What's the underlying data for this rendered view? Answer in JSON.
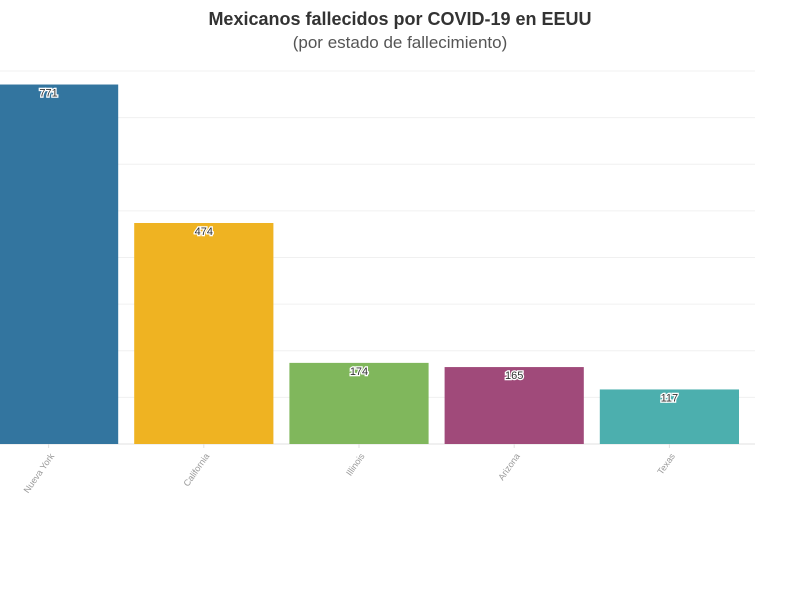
{
  "chart_data": {
    "type": "bar",
    "title": "Mexicanos fallecidos por COVID-19 en EEUU",
    "subtitle": "(por estado de fallecimiento)",
    "categories": [
      "Nueva York",
      "California",
      "Illinois",
      "Arizona",
      "Texas"
    ],
    "values": [
      771,
      474,
      174,
      165,
      117
    ],
    "colors": [
      "#33759f",
      "#efb322",
      "#80b75c",
      "#a04a7a",
      "#4cafae"
    ],
    "ylim": [
      0,
      800
    ],
    "grid": true,
    "xlabel": "",
    "ylabel": ""
  }
}
